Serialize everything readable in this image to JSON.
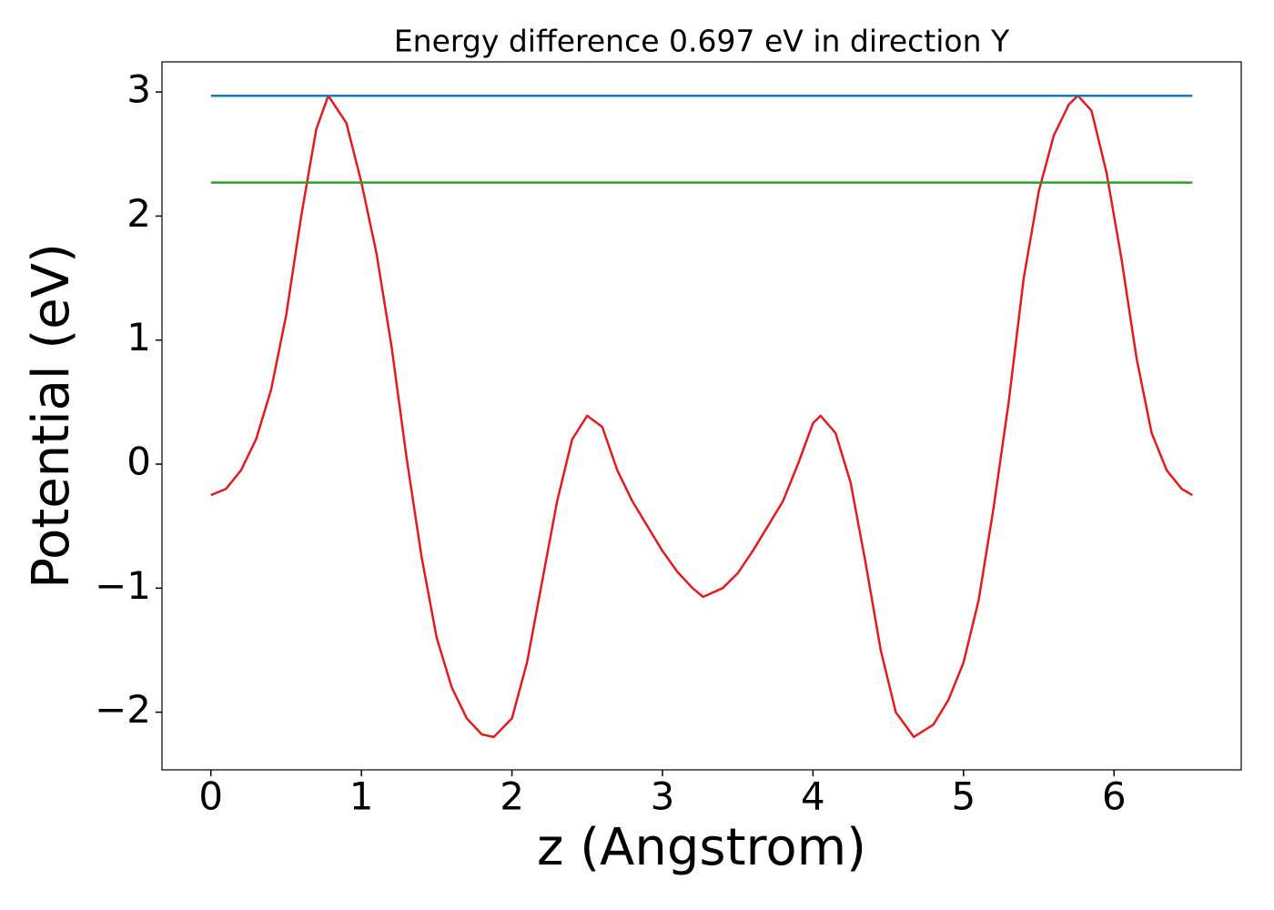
{
  "chart_data": {
    "type": "line",
    "title": "Energy difference 0.697 eV in direction Y",
    "xlabel": "z (Angstrom)",
    "ylabel": "Potential (eV)",
    "xlim": [
      -0.325,
      6.845
    ],
    "ylim": [
      -2.465,
      3.243
    ],
    "xticks": [
      0,
      1,
      2,
      3,
      4,
      5,
      6
    ],
    "yticks": [
      {
        "value": -2,
        "label": "−2"
      },
      {
        "value": -1,
        "label": "−1"
      },
      0,
      1,
      2,
      3
    ],
    "grid": false,
    "series": [
      {
        "color": "#e41a1c",
        "x": [
          0,
          0.1,
          0.2,
          0.3,
          0.4,
          0.5,
          0.6,
          0.7,
          0.78,
          0.9,
          1.0,
          1.1,
          1.2,
          1.3,
          1.4,
          1.5,
          1.6,
          1.7,
          1.8,
          1.88,
          2.0,
          2.1,
          2.2,
          2.3,
          2.4,
          2.5,
          2.6,
          2.7,
          2.8,
          2.9,
          3.0,
          3.1,
          3.2,
          3.27,
          3.4,
          3.5,
          3.6,
          3.7,
          3.8,
          3.9,
          4.0,
          4.05,
          4.15,
          4.25,
          4.35,
          4.45,
          4.55,
          4.67,
          4.8,
          4.9,
          5.0,
          5.1,
          5.2,
          5.3,
          5.4,
          5.5,
          5.6,
          5.7,
          5.76,
          5.85,
          5.95,
          6.05,
          6.15,
          6.25,
          6.35,
          6.45,
          6.52
        ],
        "values": [
          -0.25,
          -0.2,
          -0.05,
          0.2,
          0.6,
          1.2,
          2.0,
          2.7,
          2.97,
          2.75,
          2.27,
          1.7,
          0.95,
          0.05,
          -0.75,
          -1.4,
          -1.8,
          -2.05,
          -2.18,
          -2.2,
          -2.05,
          -1.6,
          -0.95,
          -0.3,
          0.2,
          0.39,
          0.3,
          -0.05,
          -0.3,
          -0.5,
          -0.7,
          -0.87,
          -1.0,
          -1.07,
          -1.0,
          -0.88,
          -0.7,
          -0.5,
          -0.3,
          0.0,
          0.33,
          0.39,
          0.25,
          -0.15,
          -0.8,
          -1.5,
          -2.0,
          -2.2,
          -2.1,
          -1.9,
          -1.6,
          -1.1,
          -0.35,
          0.5,
          1.5,
          2.2,
          2.65,
          2.9,
          2.97,
          2.85,
          2.35,
          1.65,
          0.85,
          0.25,
          -0.05,
          -0.2,
          -0.25
        ]
      },
      {
        "color": "#1f77b4",
        "x": [
          0,
          6.52
        ],
        "values": [
          2.97,
          2.97
        ]
      },
      {
        "color": "#2ca02c",
        "x": [
          0,
          6.52
        ],
        "values": [
          2.27,
          2.27
        ]
      }
    ]
  }
}
